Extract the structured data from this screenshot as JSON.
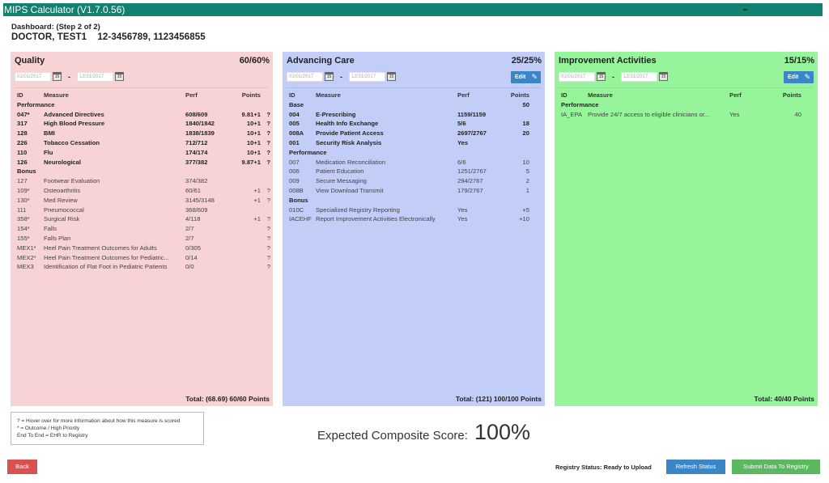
{
  "window": {
    "title": "MIPS Calculator (V1.7.0.56)"
  },
  "dashboard": {
    "step": "Dashboard: (Step 2 of 2)",
    "doctor": "DOCTOR, TEST1",
    "ids": "12-3456789, 1123456855"
  },
  "columns": {
    "id": "ID",
    "measure": "Measure",
    "perf": "Perf",
    "points": "Points"
  },
  "quality": {
    "title": "Quality",
    "percent": "60/60%",
    "start_date": "01/01/2017",
    "end_date": "12/31/2017",
    "sections": {
      "performance": "Performance",
      "bonus": "Bonus"
    },
    "performance_rows": [
      {
        "id": "047*",
        "measure": "Advanced Directives",
        "perf": "608/609",
        "points": "9.81+1",
        "help": "?"
      },
      {
        "id": "317",
        "measure": "High Blood Pressure",
        "perf": "1840/1842",
        "points": "10+1",
        "help": "?"
      },
      {
        "id": "128",
        "measure": "BMI",
        "perf": "1838/1839",
        "points": "10+1",
        "help": "?"
      },
      {
        "id": "226",
        "measure": "Tobacco Cessation",
        "perf": "712/712",
        "points": "10+1",
        "help": "?"
      },
      {
        "id": "110",
        "measure": "Flu",
        "perf": "174/174",
        "points": "10+1",
        "help": "?"
      },
      {
        "id": "126",
        "measure": "Neurological",
        "perf": "377/382",
        "points": "9.87+1",
        "help": "?"
      }
    ],
    "bonus_rows": [
      {
        "id": "127",
        "measure": "Footwear Evaluation",
        "perf": "374/382",
        "points": "",
        "help": ""
      },
      {
        "id": "109*",
        "measure": "Osteoarthritis",
        "perf": "60/61",
        "points": "+1",
        "help": "?"
      },
      {
        "id": "130*",
        "measure": "Med Review",
        "perf": "3145/3148",
        "points": "+1",
        "help": "?"
      },
      {
        "id": "111",
        "measure": "Pneumococcal",
        "perf": "368/609",
        "points": "",
        "help": ""
      },
      {
        "id": "358*",
        "measure": "Surgical Risk",
        "perf": "4/118",
        "points": "+1",
        "help": "?"
      },
      {
        "id": "154*",
        "measure": "Falls",
        "perf": "2/7",
        "points": "",
        "help": "?"
      },
      {
        "id": "155*",
        "measure": "Falls Plan",
        "perf": "2/7",
        "points": "",
        "help": "?"
      },
      {
        "id": "MEX1*",
        "measure": "Heel Pain Treatment Outcomes for Adults",
        "perf": "0/305",
        "points": "",
        "help": "?"
      },
      {
        "id": "MEX2*",
        "measure": "Heel Pain Treatment Outcomes for Pediatric...",
        "perf": "0/14",
        "points": "",
        "help": "?"
      },
      {
        "id": "MEX3",
        "measure": "Identification of Flat Foot in Pediatric Patients",
        "perf": "0/0",
        "points": "",
        "help": "?"
      }
    ],
    "total": "Total: (68.69) 60/60 Points"
  },
  "advancing_care": {
    "title": "Advancing Care",
    "percent": "25/25%",
    "start_date": "01/01/2017",
    "end_date": "12/31/2017",
    "edit_label": "Edit",
    "sections": {
      "base": "Base",
      "base_points": "50",
      "performance": "Performance",
      "bonus": "Bonus"
    },
    "base_rows": [
      {
        "id": "004",
        "measure": "E-Prescribing",
        "perf": "1159/1159",
        "points": ""
      },
      {
        "id": "005",
        "measure": "Health Info Exchange",
        "perf": "5/6",
        "points": "18"
      },
      {
        "id": "008A",
        "measure": "Provide Patient Access",
        "perf": "2697/2767",
        "points": "20"
      },
      {
        "id": "001",
        "measure": "Security Risk Analysis",
        "perf": "Yes",
        "points": ""
      }
    ],
    "performance_rows": [
      {
        "id": "007",
        "measure": "Medication Reconciliation",
        "perf": "6/6",
        "points": "10"
      },
      {
        "id": "006",
        "measure": "Patient Education",
        "perf": "1251/2767",
        "points": "5"
      },
      {
        "id": "009",
        "measure": "Secure Messaging",
        "perf": "294/2767",
        "points": "2"
      },
      {
        "id": "008B",
        "measure": "View Download Transmit",
        "perf": "179/2767",
        "points": "1"
      }
    ],
    "bonus_rows": [
      {
        "id": "010C",
        "measure": "Specialized Registry Reporting",
        "perf": "Yes",
        "points": "+5"
      },
      {
        "id": "IACEHF",
        "measure": "Report Improvement Activities Electronically",
        "perf": "Yes",
        "points": "+10"
      }
    ],
    "total": "Total: (121) 100/100 Points"
  },
  "improvement_activities": {
    "title": "Improvement Activities",
    "percent": "15/15%",
    "start_date": "01/01/2017",
    "end_date": "12/31/2017",
    "edit_label": "Edit",
    "sections": {
      "performance": "Performance"
    },
    "performance_rows": [
      {
        "id": "IA_EPA",
        "measure": "Provide 24/7 access to eligible clinicians or...",
        "perf": "Yes",
        "points": "40"
      }
    ],
    "total": "Total: 40/40 Points"
  },
  "legend": {
    "line1": "? = Hover over for more information about how this measure is scored",
    "line2": "* = Outcome / High Priority",
    "line3": "End To End = EHR to Registry"
  },
  "composite": {
    "label": "Expected Composite Score:",
    "value": "100%"
  },
  "footer": {
    "back_label": "Back",
    "registry_status": "Registry Status: Ready to Upload",
    "refresh_label": "Refresh Status",
    "submit_label": "Submit Data To Registry"
  },
  "colors": {
    "titlebar": "#12816f",
    "quality_bg": "#f7d3d5",
    "aci_bg": "#c2cdf8",
    "ia_bg": "#96f59b",
    "primary_button": "#3b86c7",
    "back_button": "#d9514f",
    "submit_button": "#5cb860"
  },
  "icons": {
    "calendar": "calendar-icon",
    "edit": "pencil-icon",
    "minimize": "minimize-icon"
  }
}
